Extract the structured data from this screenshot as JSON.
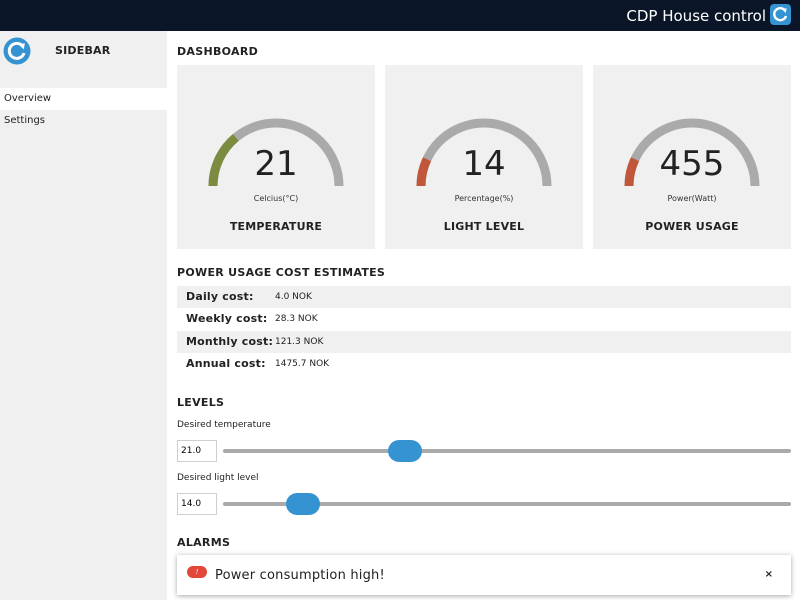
{
  "header": {
    "title": "CDP House control",
    "logo_icon": "refresh-logo-icon"
  },
  "sidebar": {
    "title": "SIDEBAR",
    "logo_icon": "refresh-logo-icon",
    "items": [
      {
        "label": "Overview",
        "active": true
      },
      {
        "label": "Settings",
        "active": false
      }
    ]
  },
  "dashboard": {
    "title": "DASHBOARD",
    "gauges": [
      {
        "value": "21",
        "unit": "Celcius(°C)",
        "label": "TEMPERATURE",
        "fraction": 0.28,
        "color": "#7b8b3f"
      },
      {
        "value": "14",
        "unit": "Percentage(%)",
        "label": "LIGHT LEVEL",
        "fraction": 0.14,
        "color": "#c0573a"
      },
      {
        "value": "455",
        "unit": "Power(Watt)",
        "label": "POWER USAGE",
        "fraction": 0.14,
        "color": "#c0573a"
      }
    ]
  },
  "costs": {
    "title": "POWER USAGE COST ESTIMATES",
    "rows": [
      {
        "label": "Daily cost:",
        "value": "4.0 NOK"
      },
      {
        "label": "Weekly cost:",
        "value": "28.3 NOK"
      },
      {
        "label": "Monthly cost:",
        "value": "121.3 NOK"
      },
      {
        "label": "Annual cost:",
        "value": "1475.7 NOK"
      }
    ]
  },
  "levels": {
    "title": "LEVELS",
    "temperature": {
      "label": "Desired temperature",
      "value": "21.0",
      "slider_fraction": 0.32
    },
    "light": {
      "label": "Desired light level",
      "value": "14.0",
      "slider_fraction": 0.14
    }
  },
  "alarms": {
    "title": "ALARMS",
    "toast": {
      "icon": "!",
      "message": "Power consumption high!",
      "close": "×"
    }
  },
  "colors": {
    "topbar": "#0a1628",
    "accent": "#3593d2",
    "gauge_track": "#aaaaaa",
    "alert": "#e2473a"
  }
}
